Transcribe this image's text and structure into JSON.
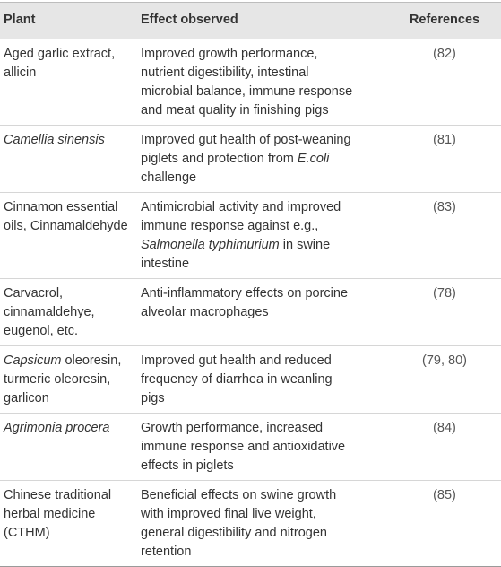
{
  "table": {
    "header": [
      "Plant",
      "Effect observed",
      "References"
    ],
    "rows": [
      [
        [
          "Aged garlic extract,",
          "allicin"
        ],
        [
          "Improved growth performance,",
          "nutrient digestibility, intestinal",
          "microbial balance, immune response",
          "and meat quality in finishing pigs"
        ],
        "(82)"
      ],
      [
        [
          [
            {
              "text": "Camellia sinensis",
              "italic": true
            }
          ]
        ],
        [
          "Improved gut health of post-weaning",
          [
            {
              "text": "piglets and protection from "
            },
            {
              "text": "E.coli",
              "italic": true
            }
          ],
          "challenge"
        ],
        "(81)"
      ],
      [
        [
          "Cinnamon essential",
          "oils, Cinnamaldehyde"
        ],
        [
          "Antimicrobial activity and improved",
          "immune response against e.g.,",
          [
            {
              "text": "Salmonella typhimurium",
              "italic": true
            },
            {
              "text": " in swine"
            }
          ],
          "intestine"
        ],
        "(83)"
      ],
      [
        [
          "Carvacrol,",
          "cinnamaldehye,",
          "eugenol, etc."
        ],
        [
          "Anti-inflammatory effects on porcine",
          "alveolar macrophages"
        ],
        "(78)"
      ],
      [
        [
          [
            {
              "text": "Capsicum",
              "italic": true
            },
            {
              "text": " oleoresin,"
            }
          ],
          "turmeric oleoresin,",
          "garlicon"
        ],
        [
          "Improved gut health and reduced",
          "frequency of diarrhea in weanling",
          "pigs"
        ],
        "(79, 80)"
      ],
      [
        [
          [
            {
              "text": "Agrimonia procera",
              "italic": true
            }
          ]
        ],
        [
          "Growth performance, increased",
          "immune response and antioxidative",
          "effects in piglets"
        ],
        "(84)"
      ],
      [
        [
          "Chinese traditional",
          "herbal medicine",
          "(CTHM)"
        ],
        [
          "Beneficial effects on swine growth",
          "with improved final live weight,",
          "general digestibility and nitrogen",
          "retention"
        ],
        "(85)"
      ]
    ]
  }
}
